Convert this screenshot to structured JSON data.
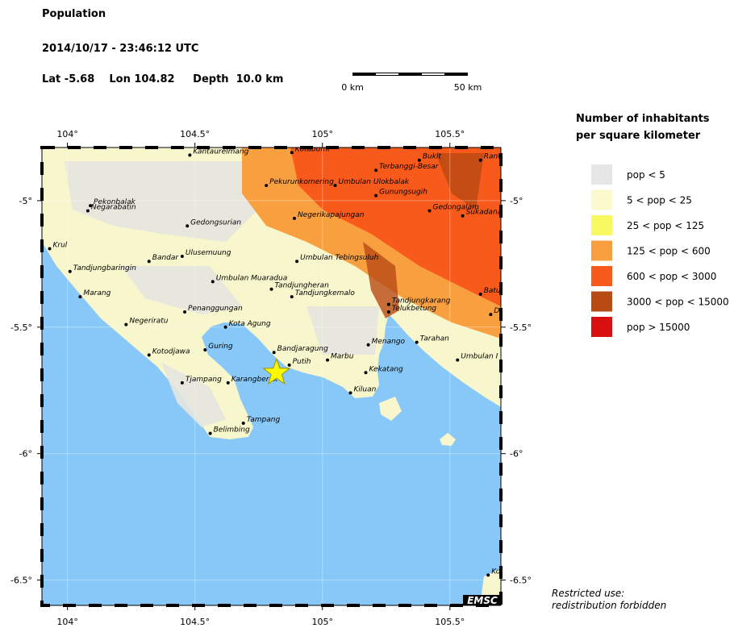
{
  "header": {
    "title": "Population",
    "datetime": "2014/10/17 - 23:46:12 UTC",
    "location": "Lat -5.68    Lon 104.82     Depth  10.0 km"
  },
  "scale": {
    "start": "0 km",
    "end": "50 km"
  },
  "legend": {
    "title_line1": "Number of inhabitants",
    "title_line2": "per square kilometer",
    "items": [
      {
        "label": "pop < 5",
        "color": "#e6e6e6"
      },
      {
        "label": "5 < pop < 25",
        "color": "#fafacc"
      },
      {
        "label": "25 < pop < 125",
        "color": "#f8f860"
      },
      {
        "label": "125 < pop < 600",
        "color": "#f8a040"
      },
      {
        "label": "600 < pop < 3000",
        "color": "#f85a1c"
      },
      {
        "label": "3000 < pop < 15000",
        "color": "#b84a14"
      },
      {
        "label": "pop > 15000",
        "color": "#d81010"
      }
    ]
  },
  "map": {
    "lonlim": [
      103.9,
      105.7
    ],
    "latlim": [
      -6.6,
      -4.79
    ],
    "lonticks": [
      {
        "value": 104,
        "label": "104°"
      },
      {
        "value": 104.5,
        "label": "104.5°"
      },
      {
        "value": 105,
        "label": "105°"
      },
      {
        "value": 105.5,
        "label": "105.5°"
      }
    ],
    "latticks": [
      {
        "value": -5,
        "label": "-5°"
      },
      {
        "value": -5.5,
        "label": "-5.5°"
      },
      {
        "value": -6,
        "label": "-6°"
      },
      {
        "value": -6.5,
        "label": "-6.5°"
      }
    ],
    "epicenter": {
      "lon": 104.82,
      "lat": -5.68
    },
    "towns": [
      {
        "name": "Kantaurelmang",
        "lon": 104.48,
        "lat": -4.82
      },
      {
        "name": "Kotabumi",
        "lon": 104.88,
        "lat": -4.81
      },
      {
        "name": "Bukit",
        "lon": 105.38,
        "lat": -4.84
      },
      {
        "name": "Ranto",
        "lon": 105.62,
        "lat": -4.84
      },
      {
        "name": "Terbanggi-Besar",
        "lon": 105.21,
        "lat": -4.88
      },
      {
        "name": "Pekurunkomering",
        "lon": 104.78,
        "lat": -4.94
      },
      {
        "name": "Umbulan Ulokbalak",
        "lon": 105.05,
        "lat": -4.94
      },
      {
        "name": "Gunungsugih",
        "lon": 105.21,
        "lat": -4.98
      },
      {
        "name": "Pekonbalak",
        "lon": 104.09,
        "lat": -5.02
      },
      {
        "name": "Negarabatin",
        "lon": 104.08,
        "lat": -5.04
      },
      {
        "name": "Gedongalam",
        "lon": 105.42,
        "lat": -5.04
      },
      {
        "name": "Sukadana",
        "lon": 105.55,
        "lat": -5.06
      },
      {
        "name": "Negerikapajungan",
        "lon": 104.89,
        "lat": -5.07
      },
      {
        "name": "Gedongsurian",
        "lon": 104.47,
        "lat": -5.1
      },
      {
        "name": "Krul",
        "lon": 103.93,
        "lat": -5.19
      },
      {
        "name": "Ulusemuung",
        "lon": 104.45,
        "lat": -5.22
      },
      {
        "name": "Bandar",
        "lon": 104.32,
        "lat": -5.24
      },
      {
        "name": "Umbulan Tebingsuluh",
        "lon": 104.9,
        "lat": -5.24
      },
      {
        "name": "Tandjungbaringin",
        "lon": 104.01,
        "lat": -5.28
      },
      {
        "name": "Umbulan Muaradua",
        "lon": 104.57,
        "lat": -5.32
      },
      {
        "name": "Tandjungheran",
        "lon": 104.8,
        "lat": -5.35
      },
      {
        "name": "Tandjungkemalo",
        "lon": 104.88,
        "lat": -5.38
      },
      {
        "name": "Batutu",
        "lon": 105.62,
        "lat": -5.37
      },
      {
        "name": "Marang",
        "lon": 104.05,
        "lat": -5.38
      },
      {
        "name": "Tandjungkarang",
        "lon": 105.26,
        "lat": -5.41
      },
      {
        "name": "Telukbetung",
        "lon": 105.26,
        "lat": -5.44
      },
      {
        "name": "D",
        "lon": 105.66,
        "lat": -5.45
      },
      {
        "name": "Penanggungan",
        "lon": 104.46,
        "lat": -5.44
      },
      {
        "name": "Negeriratu",
        "lon": 104.23,
        "lat": -5.49
      },
      {
        "name": "Kota Agung",
        "lon": 104.62,
        "lat": -5.5
      },
      {
        "name": "Tarahan",
        "lon": 105.37,
        "lat": -5.56
      },
      {
        "name": "Menango",
        "lon": 105.18,
        "lat": -5.57
      },
      {
        "name": "Guring",
        "lon": 104.54,
        "lat": -5.59
      },
      {
        "name": "Bandjaragung",
        "lon": 104.81,
        "lat": -5.6
      },
      {
        "name": "Kotodjawa",
        "lon": 104.32,
        "lat": -5.61
      },
      {
        "name": "Marbu",
        "lon": 105.02,
        "lat": -5.63
      },
      {
        "name": "Umbulan I",
        "lon": 105.53,
        "lat": -5.63
      },
      {
        "name": "Putih",
        "lon": 104.87,
        "lat": -5.65
      },
      {
        "name": "Kekatang",
        "lon": 105.17,
        "lat": -5.68
      },
      {
        "name": "Tjampang",
        "lon": 104.45,
        "lat": -5.72
      },
      {
        "name": "Karangberak",
        "lon": 104.63,
        "lat": -5.72
      },
      {
        "name": "Kiluan",
        "lon": 105.11,
        "lat": -5.76
      },
      {
        "name": "Tampang",
        "lon": 104.69,
        "lat": -5.88
      },
      {
        "name": "Belimbing",
        "lon": 104.56,
        "lat": -5.92
      },
      {
        "name": "Ko",
        "lon": 105.65,
        "lat": -6.48
      }
    ]
  },
  "footer": {
    "line1": "Restricted use:",
    "line2": "redistribution forbidden",
    "badge": "EMSC"
  }
}
